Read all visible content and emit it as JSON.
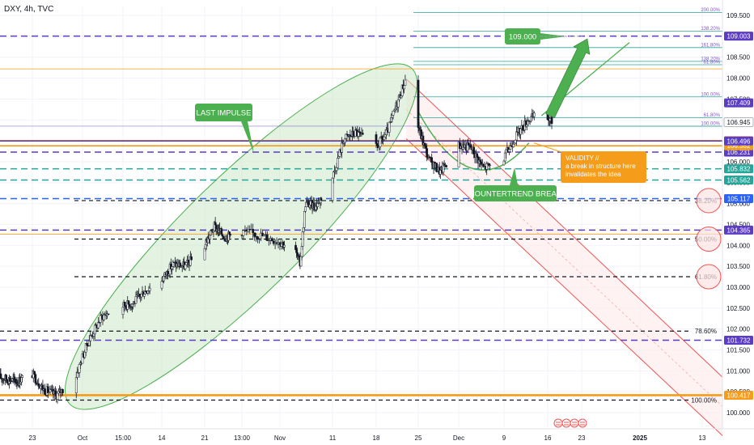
{
  "header": {
    "symbol_label": "DXY, 4h, TVC"
  },
  "colors": {
    "bull": "#ffffff",
    "bear": "#131722",
    "wick": "#131722",
    "impulse_fill": "#cde9c9",
    "impulse_stroke": "#4caf50",
    "channel": "#ef5350",
    "channel_fill": "#fdecec",
    "green_label": "#4caf50",
    "orange": "#f59c1a",
    "purple": "#5b3cc4",
    "blue": "#2962ff",
    "teal": "#26a69a",
    "black": "#131722",
    "grid": "#f0f3fa",
    "axis_text": "#131722"
  },
  "chart_data": {
    "type": "candlestick",
    "symbol": "DXY",
    "timeframe": "4h",
    "source": "TVC",
    "y_axis": {
      "ylim": [
        99.58,
        109.78
      ],
      "ticks": [
        100.0,
        100.5,
        101.0,
        101.5,
        102.0,
        102.5,
        103.0,
        103.5,
        104.0,
        104.5,
        105.0,
        105.5,
        106.0,
        106.5,
        107.0,
        107.5,
        108.0,
        108.5,
        109.0,
        109.5
      ],
      "tick_labels": [
        "100.000",
        "100.500",
        "101.000",
        "101.500",
        "102.000",
        "102.500",
        "103.000",
        "103.500",
        "104.000",
        "104.500",
        "105.000",
        "105.500",
        "106.000",
        "106.500",
        "107.000",
        "107.500",
        "108.000",
        "108.500",
        "109.000",
        "109.500"
      ]
    },
    "x_axis": {
      "tick_labels": [
        "23",
        "Oct",
        "15:00",
        "14",
        "21",
        "13:00",
        "Nov",
        "11",
        "18",
        "25",
        "Dec",
        "9",
        "16",
        "23",
        "2025",
        "13"
      ],
      "tick_dates": [
        "2024-09-23",
        "2024-10-01",
        "2024-10-07",
        "2024-10-14",
        "2024-10-21",
        "2024-10-28",
        "2024-11-01",
        "2024-11-11",
        "2024-11-18",
        "2024-11-25",
        "2024-12-02",
        "2024-12-09",
        "2024-12-16",
        "2024-12-23",
        "2025-01-01",
        "2025-01-13"
      ],
      "range": [
        "2024-09-16",
        "2025-01-19"
      ]
    },
    "price_path": [
      [
        "2024-09-16",
        100.85
      ],
      [
        "2024-09-20",
        100.75
      ],
      [
        "2024-09-23",
        100.95
      ],
      [
        "2024-09-25",
        100.55
      ],
      [
        "2024-09-27",
        100.42
      ],
      [
        "2024-09-30",
        100.82
      ],
      [
        "2024-10-02",
        101.7
      ],
      [
        "2024-10-04",
        102.3
      ],
      [
        "2024-10-07",
        102.55
      ],
      [
        "2024-10-09",
        102.62
      ],
      [
        "2024-10-11",
        102.9
      ],
      [
        "2024-10-14",
        103.15
      ],
      [
        "2024-10-16",
        103.55
      ],
      [
        "2024-10-18",
        103.5
      ],
      [
        "2024-10-21",
        103.95
      ],
      [
        "2024-10-23",
        104.45
      ],
      [
        "2024-10-25",
        104.2
      ],
      [
        "2024-10-28",
        104.35
      ],
      [
        "2024-10-30",
        104.25
      ],
      [
        "2024-11-01",
        104.1
      ],
      [
        "2024-11-04",
        103.9
      ],
      [
        "2024-11-05",
        103.55
      ],
      [
        "2024-11-06",
        105.0
      ],
      [
        "2024-11-08",
        104.95
      ],
      [
        "2024-11-11",
        105.55
      ],
      [
        "2024-11-13",
        106.55
      ],
      [
        "2024-11-15",
        106.7
      ],
      [
        "2024-11-18",
        106.3
      ],
      [
        "2024-11-20",
        106.7
      ],
      [
        "2024-11-22",
        107.55
      ],
      [
        "2024-11-23",
        107.95
      ],
      [
        "2024-11-25",
        106.9
      ],
      [
        "2024-11-27",
        106.05
      ],
      [
        "2024-11-29",
        105.75
      ],
      [
        "2024-12-02",
        106.4
      ],
      [
        "2024-12-04",
        106.35
      ],
      [
        "2024-12-06",
        105.85
      ],
      [
        "2024-12-09",
        106.05
      ],
      [
        "2024-12-11",
        106.6
      ],
      [
        "2024-12-13",
        107.0
      ],
      [
        "2024-12-15",
        107.15
      ],
      [
        "2024-12-17",
        106.95
      ]
    ],
    "last_price": 106.945,
    "horizontal_levels": [
      {
        "price": 109.003,
        "style": "dashed",
        "color": "purple",
        "label": "109.003"
      },
      {
        "price": 106.231,
        "style": "dashed",
        "color": "purple",
        "label": "106.231"
      },
      {
        "price": 104.365,
        "style": "dashed",
        "color": "purple",
        "label": "104.365"
      },
      {
        "price": 101.732,
        "style": "dashed",
        "color": "purple",
        "label": "101.732"
      },
      {
        "price": 105.117,
        "style": "dashed",
        "color": "blue",
        "label": "105.117"
      },
      {
        "price": 106.504,
        "style": "solid",
        "color": "orange",
        "label": "106.504"
      },
      {
        "price": 106.382,
        "style": "solid",
        "color": "orange",
        "label": "106.382"
      },
      {
        "price": 100.417,
        "style": "solid",
        "color": "orange",
        "label": "100.417"
      },
      {
        "price": 106.496,
        "style": "solid",
        "color": "purple",
        "label": "106.496"
      },
      {
        "price": 105.832,
        "style": "dashed",
        "color": "teal",
        "label": "105.832"
      },
      {
        "price": 105.562,
        "style": "dashed",
        "color": "teal",
        "label": "105.562"
      },
      {
        "price": 107.409,
        "style": "none",
        "color": "purple",
        "label": "107.409"
      }
    ],
    "retracement_levels": [
      {
        "label": "38.20%",
        "price": 105.07
      },
      {
        "label": "50.00%",
        "price": 104.15
      },
      {
        "label": "61.80%",
        "price": 103.25
      },
      {
        "label": "78.60%",
        "price": 101.95
      },
      {
        "label": "100.00%",
        "price": 100.3
      }
    ],
    "extension_levels": [
      {
        "label": "200.00%",
        "price": 109.57
      },
      {
        "label": "138.20%",
        "price": 109.12
      },
      {
        "label": "161.80%",
        "price": 108.73
      },
      {
        "label": "138.20%",
        "price": 108.4
      },
      {
        "label": "61.80%",
        "price": 108.32
      },
      {
        "label": "100.00%",
        "price": 107.55
      },
      {
        "label": "61.80%",
        "price": 107.05
      },
      {
        "label": "100.00%",
        "price": 106.85
      }
    ],
    "annotations": {
      "impulse_label": "LAST IMPULSE",
      "target_label": "109.000",
      "countertrend_label": "COUNTERTREND BREAK",
      "validity_line1": "VALIDITY //",
      "validity_line2": "a break in structure here",
      "validity_line3": "invalidates the idea"
    },
    "last_price_label": "106.945"
  }
}
